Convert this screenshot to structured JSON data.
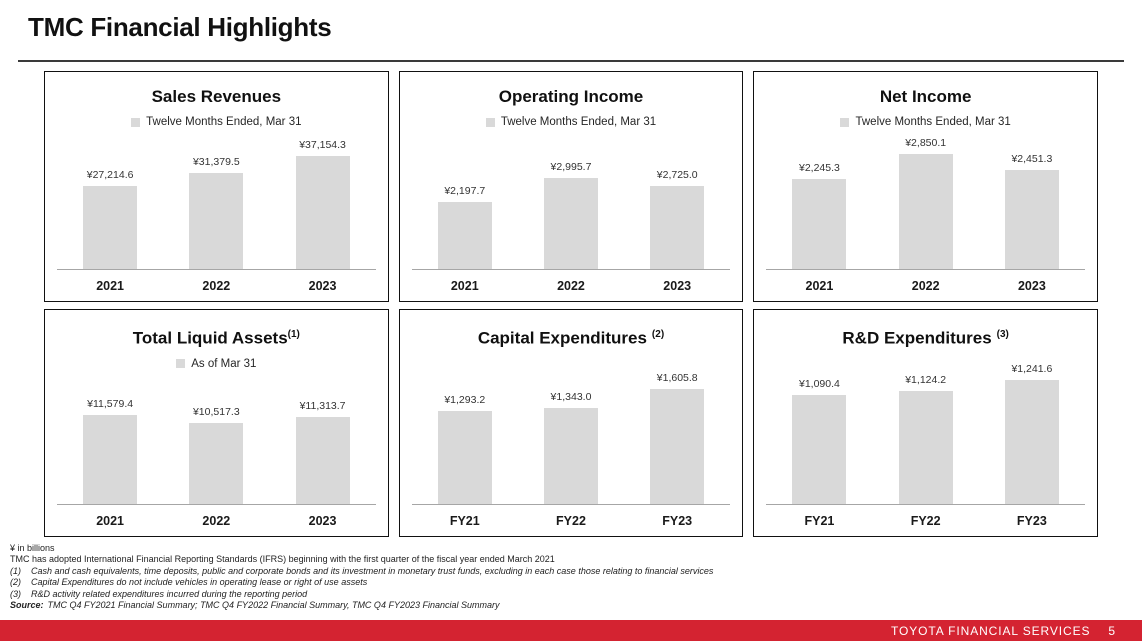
{
  "page": {
    "title": "TMC Financial Highlights",
    "unit_note": "¥ in billions"
  },
  "colors": {
    "bar_fill": "#d9d9d9",
    "axis_line": "#a6a6a6",
    "footer_red": "#d42331",
    "card_border": "#111111"
  },
  "chart_data": [
    {
      "id": "sales-revenues",
      "type": "bar",
      "title": "Sales Revenues",
      "title_superscript": "",
      "superscript_gap": false,
      "legend": "Twelve Months Ended, Mar 31",
      "legend_position": "top",
      "grid": false,
      "categories": [
        "2021",
        "2022",
        "2023"
      ],
      "values": [
        27214.6,
        31379.5,
        37154.3
      ],
      "value_labels": [
        "¥27,214.6",
        "¥31,379.5",
        "¥37,154.3"
      ],
      "ylabel": "¥ in billions",
      "ylim": [
        0,
        45000
      ]
    },
    {
      "id": "operating-income",
      "type": "bar",
      "title": "Operating Income",
      "title_superscript": "",
      "superscript_gap": false,
      "legend": "Twelve Months Ended, Mar 31",
      "legend_position": "top",
      "grid": false,
      "categories": [
        "2021",
        "2022",
        "2023"
      ],
      "values": [
        2197.7,
        2995.7,
        2725.0
      ],
      "value_labels": [
        "¥2,197.7",
        "¥2,995.7",
        "¥2,725.0"
      ],
      "ylabel": "¥ in billions",
      "ylim": [
        0,
        4500
      ]
    },
    {
      "id": "net-income",
      "type": "bar",
      "title": "Net Income",
      "title_superscript": "",
      "superscript_gap": false,
      "legend": "Twelve Months Ended, Mar 31",
      "legend_position": "top",
      "grid": false,
      "categories": [
        "2021",
        "2022",
        "2023"
      ],
      "values": [
        2245.3,
        2850.1,
        2451.3
      ],
      "value_labels": [
        "¥2,245.3",
        "¥2,850.1",
        "¥2,451.3"
      ],
      "ylabel": "¥ in billions",
      "ylim": [
        0,
        3400
      ]
    },
    {
      "id": "total-liquid-assets",
      "type": "bar",
      "title": "Total Liquid Assets",
      "title_superscript": "(1)",
      "superscript_gap": false,
      "legend": "As of Mar 31",
      "legend_position": "top",
      "grid": false,
      "categories": [
        "2021",
        "2022",
        "2023"
      ],
      "values": [
        11579.4,
        10517.3,
        11313.7
      ],
      "value_labels": [
        "¥11,579.4",
        "¥10,517.3",
        "¥11,313.7"
      ],
      "ylabel": "¥ in billions",
      "ylim": [
        0,
        17000
      ]
    },
    {
      "id": "capital-expenditures",
      "type": "bar",
      "title": "Capital Expenditures",
      "title_superscript": "(2)",
      "superscript_gap": true,
      "legend": "",
      "legend_position": "none",
      "grid": false,
      "categories": [
        "FY21",
        "FY22",
        "FY23"
      ],
      "values": [
        1293.2,
        1343.0,
        1605.8
      ],
      "value_labels": [
        "¥1,293.2",
        "¥1,343.0",
        "¥1,605.8"
      ],
      "ylabel": "¥ in billions",
      "ylim": [
        0,
        2100
      ]
    },
    {
      "id": "rd-expenditures",
      "type": "bar",
      "title": "R&D Expenditures",
      "title_superscript": "(3)",
      "superscript_gap": true,
      "legend": "",
      "legend_position": "none",
      "grid": false,
      "categories": [
        "FY21",
        "FY22",
        "FY23"
      ],
      "values": [
        1090.4,
        1124.2,
        1241.6
      ],
      "value_labels": [
        "¥1,090.4",
        "¥1,124.2",
        "¥1,241.6"
      ],
      "ylabel": "¥ in billions",
      "ylim": [
        0,
        1500
      ]
    }
  ],
  "footnotes": {
    "lines": [
      {
        "marker": "",
        "text": "¥ in billions"
      },
      {
        "marker": "",
        "text": "TMC has adopted International Financial Reporting Standards (IFRS) beginning with the first quarter of the fiscal year ended March 2021"
      },
      {
        "marker": "(1)",
        "text": "Cash and cash equivalents, time deposits, public and corporate bonds and its investment in monetary trust funds, excluding in each case those relating to financial services"
      },
      {
        "marker": "(2)",
        "text": "Capital Expenditures do not include vehicles in operating lease or right of use assets"
      },
      {
        "marker": "(3)",
        "text": "R&D activity related expenditures incurred during the reporting period"
      },
      {
        "marker": "Source:",
        "text": "TMC Q4 FY2021 Financial Summary; TMC Q4 FY2022 Financial Summary, TMC Q4 FY2023 Financial Summary"
      }
    ]
  },
  "footer": {
    "brand": "TOYOTA FINANCIAL SERVICES",
    "page_number": "5"
  }
}
